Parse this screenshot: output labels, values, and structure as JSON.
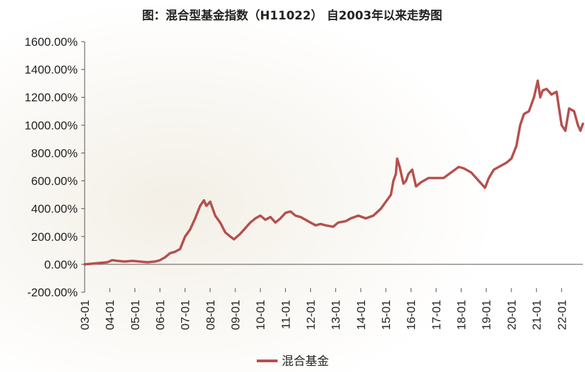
{
  "chart_data": {
    "type": "line",
    "title": "图：混合型基金指数（H11022） 自2003年以来走势图",
    "xlabel": "",
    "ylabel": "",
    "ylim": [
      -200,
      1600
    ],
    "y_ticks": [
      "1600.00%",
      "1400.00%",
      "1200.00%",
      "1000.00%",
      "800.00%",
      "600.00%",
      "400.00%",
      "200.00%",
      "0.00%",
      "-200.00%"
    ],
    "y_tick_values": [
      1600,
      1400,
      1200,
      1000,
      800,
      600,
      400,
      200,
      0,
      -200
    ],
    "x_ticks": [
      "03-01",
      "04-01",
      "05-01",
      "06-01",
      "07-01",
      "08-01",
      "09-01",
      "10-01",
      "11-01",
      "12-01",
      "13-01",
      "14-01",
      "15-01",
      "16-01",
      "17-01",
      "18-01",
      "19-01",
      "20-01",
      "21-01",
      "22-01"
    ],
    "xlim": [
      2003.0,
      2022.85
    ],
    "legend": "bottom-center",
    "grid": false,
    "color": "#b5504d",
    "series": [
      {
        "name": "混合基金",
        "x": [
          2003.0,
          2003.3,
          2003.6,
          2003.9,
          2004.1,
          2004.3,
          2004.6,
          2004.9,
          2005.2,
          2005.5,
          2005.8,
          2006.0,
          2006.2,
          2006.4,
          2006.6,
          2006.8,
          2007.0,
          2007.2,
          2007.4,
          2007.6,
          2007.75,
          2007.85,
          2008.0,
          2008.2,
          2008.4,
          2008.6,
          2008.8,
          2008.95,
          2009.2,
          2009.4,
          2009.6,
          2009.8,
          2010.0,
          2010.2,
          2010.4,
          2010.6,
          2010.8,
          2011.0,
          2011.2,
          2011.4,
          2011.6,
          2011.8,
          2012.0,
          2012.2,
          2012.4,
          2012.6,
          2012.9,
          2013.1,
          2013.4,
          2013.6,
          2013.9,
          2014.2,
          2014.5,
          2014.8,
          2015.0,
          2015.2,
          2015.3,
          2015.4,
          2015.45,
          2015.55,
          2015.7,
          2015.8,
          2015.9,
          2016.05,
          2016.2,
          2016.4,
          2016.7,
          2017.0,
          2017.3,
          2017.6,
          2017.9,
          2018.1,
          2018.4,
          2018.7,
          2018.95,
          2019.1,
          2019.3,
          2019.5,
          2019.8,
          2020.0,
          2020.2,
          2020.35,
          2020.5,
          2020.7,
          2020.9,
          2021.05,
          2021.15,
          2021.25,
          2021.4,
          2021.6,
          2021.8,
          2022.0,
          2022.15,
          2022.3,
          2022.5,
          2022.65,
          2022.75,
          2022.85
        ],
        "values": [
          0,
          5,
          10,
          15,
          30,
          25,
          20,
          25,
          20,
          15,
          20,
          30,
          50,
          80,
          90,
          110,
          200,
          250,
          330,
          420,
          460,
          420,
          450,
          350,
          300,
          230,
          200,
          180,
          220,
          260,
          300,
          330,
          350,
          320,
          340,
          300,
          330,
          370,
          380,
          350,
          340,
          320,
          300,
          280,
          290,
          280,
          270,
          300,
          310,
          330,
          350,
          330,
          350,
          400,
          450,
          500,
          600,
          650,
          760,
          700,
          580,
          600,
          650,
          680,
          560,
          590,
          620,
          620,
          620,
          660,
          700,
          690,
          660,
          600,
          550,
          620,
          680,
          700,
          730,
          760,
          850,
          1000,
          1080,
          1100,
          1200,
          1320,
          1200,
          1250,
          1260,
          1220,
          1240,
          1000,
          960,
          1120,
          1100,
          1000,
          960,
          1010
        ]
      }
    ]
  }
}
